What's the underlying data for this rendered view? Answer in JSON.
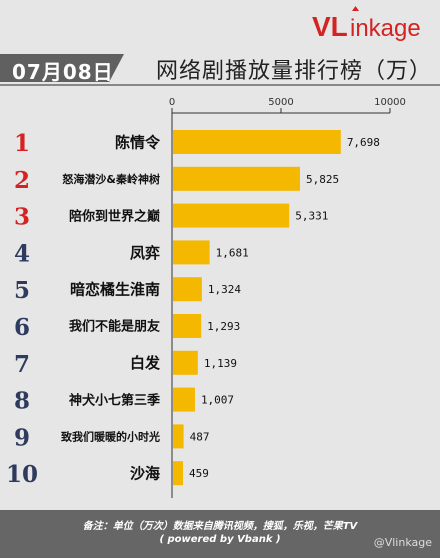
{
  "brand": {
    "logo_text_v": "VL",
    "logo_text_rest": "inkage"
  },
  "header": {
    "date": "07月08日",
    "title": "网络剧播放量排行榜（万）"
  },
  "chart_data": {
    "type": "bar",
    "orientation": "horizontal",
    "title": "网络剧播放量排行榜（万）",
    "categories": [
      "陈情令",
      "怒海潜沙&秦岭神树",
      "陪你到世界之巅",
      "凤弈",
      "暗恋橘生淮南",
      "我们不能是朋友",
      "白发",
      "神犬小七第三季",
      "致我们暖暖的小时光",
      "沙海"
    ],
    "ranks": [
      "1",
      "2",
      "3",
      "4",
      "5",
      "6",
      "7",
      "8",
      "9",
      "10"
    ],
    "values": [
      7698,
      5825,
      5331,
      1681,
      1324,
      1293,
      1139,
      1007,
      487,
      459
    ],
    "value_labels": [
      "7,698",
      "5,825",
      "5,331",
      "1,681",
      "1,324",
      "1,293",
      "1,139",
      "1,007",
      "487",
      "459"
    ],
    "xlim": [
      0,
      10000
    ],
    "xticks": [
      "0",
      "5000",
      "10000"
    ],
    "xtick_values": [
      0,
      5000,
      10000
    ],
    "bar_color": "#f5b800",
    "top_rank_color": "#d42323",
    "rank_color": "#2e3a5e",
    "grid": false
  },
  "footer": {
    "note": "备注：单位（万次）数据来自腾讯视频，搜狐，乐视，芒果TV",
    "powered": "( powered by Vbank )",
    "weibo": "@Vlinkage"
  }
}
